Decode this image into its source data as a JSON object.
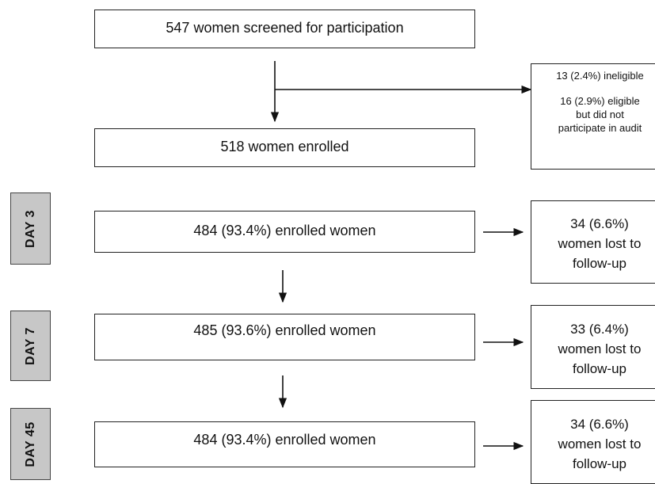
{
  "screened": "547 women screened for participation",
  "enrolled": "518 women enrolled",
  "exclusions": {
    "ineligible": "13 (2.4%) ineligible",
    "eligible_line1": "16 (2.9%) eligible",
    "eligible_line2": "but did not",
    "eligible_line3": "participate in audit"
  },
  "days": [
    {
      "label": "DAY 3",
      "box": "484 (93.4%) enrolled women",
      "lost": [
        "34 (6.6%)",
        "women lost to",
        "follow-up"
      ]
    },
    {
      "label": "DAY 7",
      "box": "485 (93.6%) enrolled women",
      "lost": [
        "33 (6.4%)",
        "women lost to",
        "follow-up"
      ]
    },
    {
      "label": "DAY 45",
      "box": "484 (93.4%) enrolled women",
      "lost": [
        "34 (6.6%)",
        "women lost to",
        "follow-up"
      ]
    }
  ]
}
